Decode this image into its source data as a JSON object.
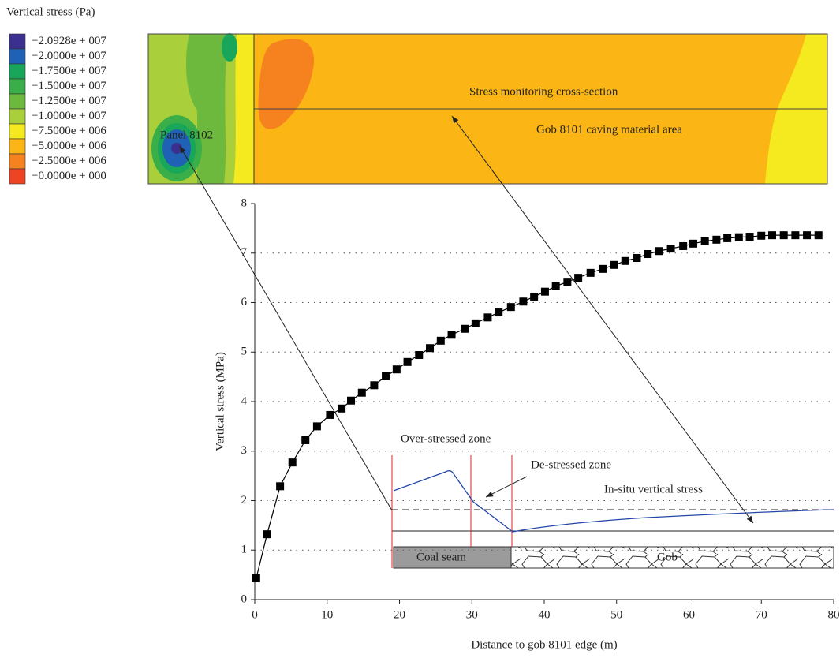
{
  "chart_data": {
    "type": "line",
    "x_label": "Distance to gob 8101 edge (m)",
    "y_label": "Vertical stress (MPa)",
    "x": [
      0.2,
      1.7,
      3.5,
      5.2,
      7.0,
      8.6,
      10.4,
      12.0,
      13.3,
      14.8,
      16.5,
      18.1,
      19.6,
      21.1,
      22.7,
      24.2,
      25.7,
      27.2,
      29.0,
      30.5,
      32.2,
      33.7,
      35.4,
      37.1,
      38.6,
      40.1,
      41.6,
      43.2,
      44.7,
      46.4,
      48.1,
      49.7,
      51.2,
      52.8,
      54.3,
      55.8,
      57.5,
      59.2,
      60.6,
      62.2,
      63.8,
      65.3,
      66.9,
      68.4,
      70.0,
      71.5,
      73.1,
      74.7,
      76.3,
      77.9
    ],
    "series": [
      {
        "color": "#000000",
        "marker": "square",
        "values": [
          0.43,
          1.32,
          2.29,
          2.77,
          3.22,
          3.5,
          3.73,
          3.86,
          4.02,
          4.18,
          4.33,
          4.51,
          4.65,
          4.8,
          4.94,
          5.08,
          5.23,
          5.35,
          5.47,
          5.58,
          5.7,
          5.8,
          5.91,
          6.02,
          6.12,
          6.22,
          6.33,
          6.42,
          6.5,
          6.6,
          6.68,
          6.76,
          6.84,
          6.9,
          6.98,
          7.04,
          7.09,
          7.14,
          7.19,
          7.24,
          7.27,
          7.3,
          7.32,
          7.33,
          7.35,
          7.36,
          7.36,
          7.36,
          7.36,
          7.36
        ]
      }
    ],
    "xlim": [
      0,
      80
    ],
    "ylim": [
      0,
      8
    ],
    "xticks": [
      0,
      10,
      20,
      30,
      40,
      50,
      60,
      70,
      80
    ],
    "yticks": [
      0,
      1,
      2,
      3,
      4,
      5,
      6,
      7,
      8
    ],
    "grid": true,
    "colorbar_title": "Vertical stress (Pa)",
    "colorbar": [
      {
        "label": "−2.0928e + 007",
        "color": "#3b2f8f"
      },
      {
        "label": "−2.0000e + 007",
        "color": "#1f62b5"
      },
      {
        "label": "−1.7500e + 007",
        "color": "#17a65a"
      },
      {
        "label": "−1.5000e + 007",
        "color": "#3aae48"
      },
      {
        "label": "−1.2500e + 007",
        "color": "#6cb93e"
      },
      {
        "label": "−1.0000e + 007",
        "color": "#a9cf3b"
      },
      {
        "label": "−7.5000e + 006",
        "color": "#f5ea1f"
      },
      {
        "label": "−5.0000e + 006",
        "color": "#fbb616"
      },
      {
        "label": "−2.5000e + 006",
        "color": "#f5821f"
      },
      {
        "label": "−0.0000e + 000",
        "color": "#ee4424"
      }
    ],
    "annotations": [
      "Panel 8102",
      "Stress monitoring cross-section",
      "Gob 8101 caving material area",
      "Over-stressed zone",
      "De-stressed zone",
      "In-situ vertical stress",
      "Coal seam",
      "Gob"
    ]
  }
}
